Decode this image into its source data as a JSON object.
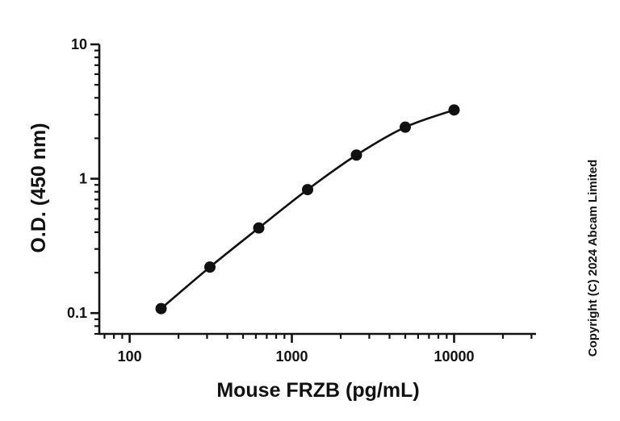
{
  "chart_data": {
    "type": "scatter",
    "xlabel": "Mouse FRZB (pg/mL)",
    "ylabel": "O.D. (450 nm)",
    "x_scale": "log",
    "y_scale": "log",
    "xlim": [
      65,
      32000
    ],
    "ylim": [
      0.07,
      10
    ],
    "x_ticks": [
      100,
      1000,
      10000
    ],
    "x_tick_labels": [
      "100",
      "1000",
      "10000"
    ],
    "y_ticks": [
      0.1,
      1,
      10
    ],
    "y_tick_labels": [
      "0.1",
      "1",
      "10"
    ],
    "grid": false,
    "series": [
      {
        "x": [
          156.25,
          312.5,
          625,
          1250,
          2500,
          5000,
          10000
        ],
        "y": [
          0.108,
          0.22,
          0.43,
          0.83,
          1.5,
          2.42,
          3.25
        ],
        "fit_curve": true
      }
    ],
    "colors": {
      "marker": "#111111",
      "line": "#111111",
      "axis": "#111111"
    }
  },
  "copyright": "Copyright (C) 2024 Abcam Limited"
}
